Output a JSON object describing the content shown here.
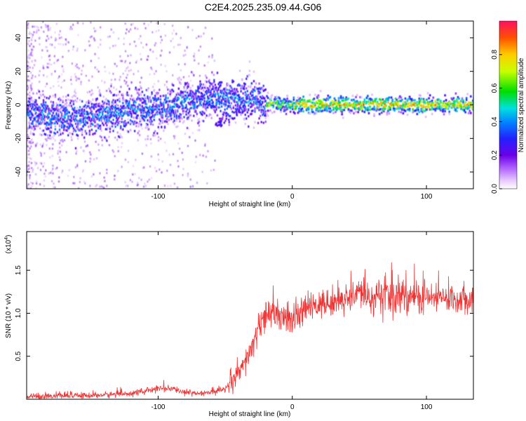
{
  "title": "C2E4.2025.235.09.44.G06",
  "chart_data": [
    {
      "type": "heatmap",
      "name": "spectrogram",
      "xlabel": "Height of straight line (km)",
      "ylabel": "Frequency (Hz)",
      "xlim": [
        -198,
        135
      ],
      "ylim": [
        -50,
        50
      ],
      "xticks": [
        -100,
        0,
        100
      ],
      "xtick_labels": [
        "-100",
        "0",
        "100"
      ],
      "yticks": [
        -40,
        -20,
        0,
        20,
        40
      ],
      "ytick_labels": [
        "-40",
        "-20",
        "0",
        "20",
        "40"
      ],
      "colorbar": {
        "label": "Normalized spectral amplitude",
        "range": [
          0,
          1
        ],
        "ticks": [
          0.0,
          0.2,
          0.4,
          0.6,
          0.8
        ],
        "tick_labels": [
          "0.0",
          "0.2",
          "0.4",
          "0.6",
          "0.8"
        ],
        "colormap": "rainbow (white-violet-blue-cyan-green-yellow-red)"
      },
      "ridge_frequency_hz": [
        {
          "x": -190,
          "y": -6
        },
        {
          "x": -160,
          "y": -8
        },
        {
          "x": -140,
          "y": -6
        },
        {
          "x": -120,
          "y": -2
        },
        {
          "x": -100,
          "y": -3
        },
        {
          "x": -80,
          "y": 2
        },
        {
          "x": -60,
          "y": 4
        },
        {
          "x": -40,
          "y": 4
        },
        {
          "x": -20,
          "y": 1
        },
        {
          "x": 0,
          "y": 0
        },
        {
          "x": 40,
          "y": 0
        },
        {
          "x": 80,
          "y": 0
        },
        {
          "x": 130,
          "y": 0
        }
      ]
    },
    {
      "type": "line",
      "name": "snr",
      "xlabel": "Height of straight line (km)",
      "ylabel": "SNR (10 * v/v)",
      "scale_note_base": "(x10",
      "scale_note_exp": "4",
      "scale_note_end": ")",
      "color": "#ee3333",
      "xlim": [
        -198,
        135
      ],
      "ylim": [
        0,
        1.95
      ],
      "xticks": [
        -100,
        0,
        100
      ],
      "xtick_labels": [
        "-100",
        "0",
        "100"
      ],
      "yticks": [
        0.5,
        1.0,
        1.5
      ],
      "ytick_labels": [
        "0.5",
        "1.0",
        "1.5"
      ],
      "series": [
        {
          "name": "SNR",
          "x": [
            -198,
            -180,
            -160,
            -140,
            -120,
            -110,
            -100,
            -90,
            -80,
            -70,
            -60,
            -50,
            -45,
            -40,
            -35,
            -30,
            -25,
            -20,
            -15,
            -10,
            -5,
            0,
            5,
            10,
            20,
            30,
            40,
            50,
            60,
            70,
            80,
            90,
            100,
            110,
            120,
            135
          ],
          "y": [
            0.03,
            0.04,
            0.04,
            0.05,
            0.07,
            0.09,
            0.13,
            0.12,
            0.08,
            0.07,
            0.08,
            0.12,
            0.18,
            0.28,
            0.42,
            0.62,
            0.82,
            0.95,
            1.0,
            0.95,
            0.92,
            0.9,
            0.97,
            1.05,
            1.1,
            1.13,
            1.18,
            1.2,
            1.2,
            1.18,
            1.2,
            1.2,
            1.18,
            1.17,
            1.17,
            1.18
          ]
        }
      ]
    }
  ]
}
